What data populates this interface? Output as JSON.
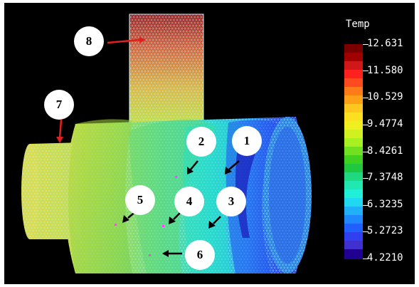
{
  "legend": {
    "title": "Temp",
    "values": [
      "12.631",
      "11.580",
      "10.529",
      "9.4774",
      "8.4261",
      "7.3748",
      "6.3235",
      "5.2723",
      "4.2210"
    ],
    "colors": [
      "#8b0000",
      "#ff2020",
      "#ff8800",
      "#ffee00",
      "#66dd00",
      "#00e090",
      "#00ccee",
      "#2255ff",
      "#1a0090"
    ]
  },
  "callouts": [
    {
      "id": "1",
      "label": "1"
    },
    {
      "id": "2",
      "label": "2"
    },
    {
      "id": "3",
      "label": "3"
    },
    {
      "id": "4",
      "label": "4"
    },
    {
      "id": "5",
      "label": "5"
    },
    {
      "id": "6",
      "label": "6"
    },
    {
      "id": "7",
      "label": "7"
    },
    {
      "id": "8",
      "label": "8"
    }
  ],
  "colors": {
    "background": "#000000",
    "mesh_line": "#a8f0ff",
    "arrow_black": "#000000",
    "arrow_red": "#e02020"
  }
}
